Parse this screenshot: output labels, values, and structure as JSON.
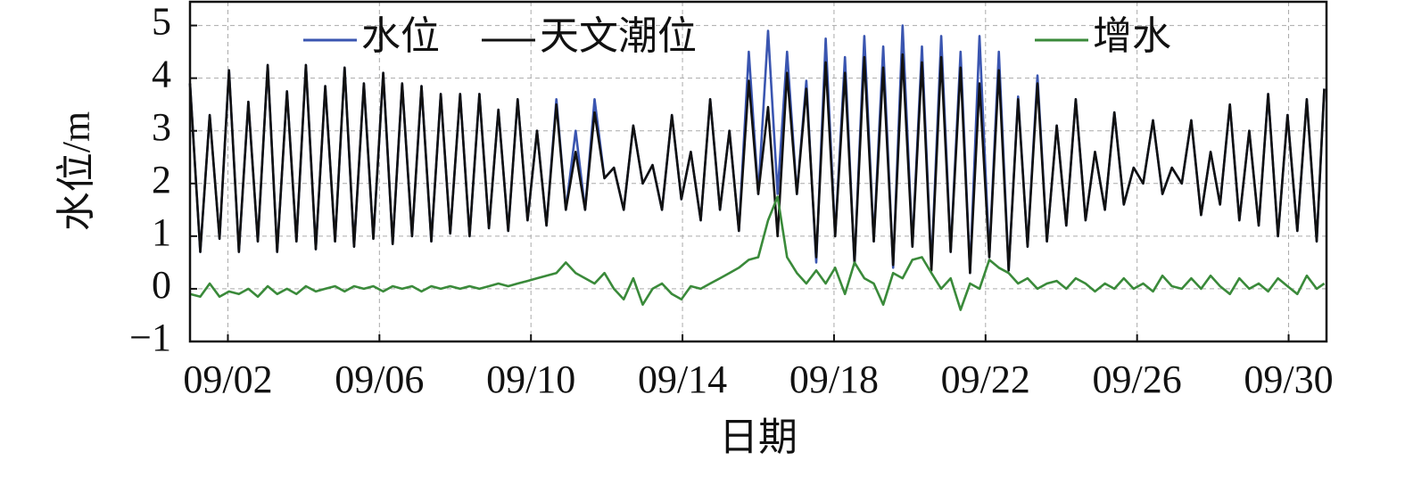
{
  "chart_data": {
    "type": "line",
    "xlabel": "日期",
    "ylabel": "水位/m",
    "x": [
      1.0,
      1.27,
      1.52,
      1.78,
      2.03,
      2.29,
      2.54,
      2.79,
      3.05,
      3.3,
      3.56,
      3.81,
      4.06,
      4.32,
      4.57,
      4.83,
      5.08,
      5.33,
      5.59,
      5.84,
      6.1,
      6.35,
      6.6,
      6.86,
      7.11,
      7.37,
      7.62,
      7.87,
      8.13,
      8.38,
      8.64,
      8.89,
      9.14,
      9.4,
      9.65,
      9.91,
      10.16,
      10.41,
      10.67,
      10.92,
      11.18,
      11.43,
      11.68,
      11.94,
      12.19,
      12.45,
      12.7,
      12.95,
      13.21,
      13.46,
      13.72,
      13.97,
      14.22,
      14.48,
      14.73,
      14.99,
      15.24,
      15.49,
      15.75,
      16.0,
      16.26,
      16.51,
      16.76,
      17.02,
      17.27,
      17.53,
      17.78,
      18.03,
      18.29,
      18.54,
      18.8,
      19.05,
      19.3,
      19.56,
      19.81,
      20.07,
      20.32,
      20.57,
      20.83,
      21.08,
      21.34,
      21.59,
      21.84,
      22.1,
      22.35,
      22.61,
      22.86,
      23.11,
      23.37,
      23.62,
      23.88,
      24.13,
      24.38,
      24.64,
      24.89,
      25.15,
      25.4,
      25.65,
      25.91,
      26.16,
      26.42,
      26.67,
      26.92,
      27.18,
      27.43,
      27.69,
      27.94,
      28.19,
      28.45,
      28.7,
      28.96,
      29.21,
      29.46,
      29.72,
      29.97,
      30.23,
      30.48,
      30.74,
      30.94
    ],
    "series": [
      {
        "name": "水位",
        "color": "#3a55b0",
        "values": [
          3.9,
          0.7,
          3.3,
          0.95,
          4.15,
          0.7,
          3.55,
          0.9,
          4.25,
          0.7,
          3.75,
          0.9,
          4.25,
          0.75,
          3.85,
          0.9,
          4.2,
          0.8,
          3.9,
          0.95,
          4.1,
          0.85,
          3.9,
          1.0,
          3.85,
          0.9,
          3.7,
          1.05,
          3.7,
          1.0,
          3.7,
          1.15,
          3.4,
          1.1,
          3.6,
          1.3,
          3.0,
          1.2,
          3.6,
          1.5,
          3.0,
          1.5,
          3.6,
          2.1,
          2.3,
          1.5,
          3.1,
          2.0,
          2.35,
          1.5,
          3.3,
          1.7,
          2.6,
          1.3,
          3.6,
          1.5,
          3.0,
          1.1,
          4.5,
          1.8,
          4.9,
          1.8,
          4.5,
          1.8,
          3.95,
          0.5,
          4.75,
          1.0,
          4.4,
          0.45,
          4.8,
          0.9,
          4.6,
          0.4,
          5.0,
          0.8,
          4.6,
          0.4,
          4.8,
          0.7,
          4.5,
          0.3,
          4.8,
          0.6,
          4.5,
          0.35,
          3.65,
          0.8,
          4.05,
          0.9,
          3.1,
          1.2,
          3.6,
          1.3,
          2.6,
          1.5,
          3.35,
          1.6,
          2.3,
          2.0,
          3.2,
          1.8,
          2.3,
          2.0,
          3.2,
          1.4,
          2.6,
          1.6,
          3.5,
          1.3,
          3.0,
          1.2,
          3.7,
          1.0,
          3.3,
          1.1,
          3.6,
          0.9,
          3.8
        ]
      },
      {
        "name": "天文潮位",
        "color": "#111111",
        "values": [
          3.9,
          0.7,
          3.3,
          0.95,
          4.15,
          0.7,
          3.55,
          0.9,
          4.25,
          0.7,
          3.75,
          0.9,
          4.25,
          0.75,
          3.85,
          0.9,
          4.2,
          0.8,
          3.9,
          0.95,
          4.1,
          0.85,
          3.9,
          1.0,
          3.85,
          0.9,
          3.7,
          1.05,
          3.7,
          1.0,
          3.7,
          1.15,
          3.4,
          1.1,
          3.6,
          1.3,
          3.0,
          1.2,
          3.5,
          1.5,
          2.6,
          1.5,
          3.35,
          2.1,
          2.3,
          1.5,
          3.1,
          2.0,
          2.35,
          1.5,
          3.3,
          1.7,
          2.6,
          1.3,
          3.6,
          1.5,
          3.0,
          1.1,
          3.95,
          1.8,
          3.45,
          1.0,
          4.1,
          1.8,
          3.8,
          0.6,
          4.3,
          1.0,
          4.1,
          0.5,
          4.4,
          0.9,
          4.2,
          0.45,
          4.45,
          0.8,
          4.3,
          0.35,
          4.4,
          0.7,
          4.2,
          0.3,
          3.9,
          0.6,
          4.15,
          0.35,
          3.6,
          0.8,
          3.9,
          0.9,
          3.1,
          1.2,
          3.6,
          1.3,
          2.6,
          1.5,
          3.35,
          1.6,
          2.3,
          2.0,
          3.2,
          1.8,
          2.3,
          2.0,
          3.2,
          1.4,
          2.6,
          1.6,
          3.5,
          1.3,
          3.0,
          1.2,
          3.7,
          1.0,
          3.3,
          1.1,
          3.6,
          0.9,
          3.8
        ]
      },
      {
        "name": "增水",
        "color": "#3a8a3a",
        "values": [
          -0.1,
          -0.15,
          0.1,
          -0.15,
          -0.05,
          -0.1,
          0.0,
          -0.15,
          0.05,
          -0.1,
          0.0,
          -0.1,
          0.05,
          -0.05,
          0,
          0.05,
          -0.05,
          0.05,
          0,
          0.05,
          -0.05,
          0.05,
          0,
          0.05,
          -0.05,
          0.05,
          0,
          0.05,
          0,
          0.05,
          0,
          0.05,
          0.1,
          0.05,
          0.1,
          0.15,
          0.2,
          0.25,
          0.3,
          0.5,
          0.3,
          0.2,
          0.1,
          0.3,
          0.0,
          -0.2,
          0.2,
          -0.3,
          0.0,
          0.1,
          -0.1,
          -0.2,
          0.05,
          0.0,
          0.1,
          0.2,
          0.3,
          0.4,
          0.55,
          0.6,
          1.3,
          1.75,
          0.6,
          0.3,
          0.1,
          0.35,
          0.1,
          0.4,
          -0.1,
          0.5,
          0.2,
          0.1,
          -0.3,
          0.3,
          0.2,
          0.55,
          0.6,
          0.3,
          0.0,
          0.2,
          -0.4,
          0.1,
          0.0,
          0.55,
          0.4,
          0.3,
          0.1,
          0.2,
          0.0,
          0.1,
          0.15,
          0.0,
          0.2,
          0.1,
          -0.05,
          0.1,
          0.0,
          0.2,
          0.0,
          0.1,
          -0.05,
          0.25,
          0.05,
          0.0,
          0.2,
          0.0,
          0.25,
          0.05,
          -0.1,
          0.2,
          0.0,
          0.1,
          -0.05,
          0.2,
          0.05,
          -0.1,
          0.25,
          0.0,
          0.1
        ]
      }
    ],
    "xlim": [
      1,
      31
    ],
    "ylim": [
      -1,
      5.45
    ],
    "xticks": [
      {
        "value": 2,
        "label": "09/02"
      },
      {
        "value": 6,
        "label": "09/06"
      },
      {
        "value": 10,
        "label": "09/10"
      },
      {
        "value": 14,
        "label": "09/14"
      },
      {
        "value": 18,
        "label": "09/18"
      },
      {
        "value": 22,
        "label": "09/22"
      },
      {
        "value": 26,
        "label": "09/26"
      },
      {
        "value": 30,
        "label": "09/30"
      }
    ],
    "yticks": [
      {
        "value": -1,
        "label": "−1"
      },
      0,
      1,
      2,
      3,
      4,
      5
    ],
    "grid": true
  }
}
